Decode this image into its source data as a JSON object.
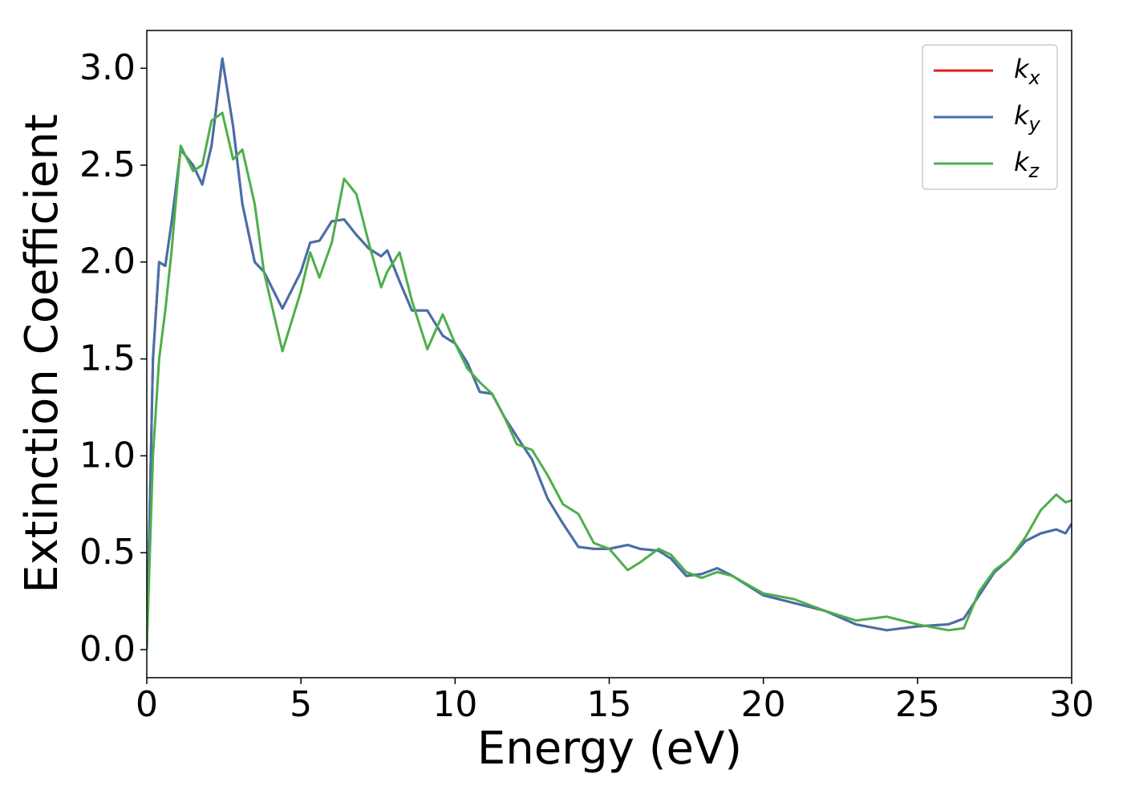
{
  "chart_data": {
    "type": "line",
    "xlabel": "Energy (eV)",
    "ylabel": "Extinction Coefficient",
    "x": [
      0,
      0.2,
      0.4,
      0.6,
      0.8,
      1.1,
      1.5,
      1.8,
      2.1,
      2.45,
      2.8,
      3.1,
      3.5,
      3.8,
      4.4,
      5.0,
      5.3,
      5.6,
      6.0,
      6.4,
      6.8,
      7.2,
      7.6,
      7.8,
      8.2,
      8.6,
      9.1,
      9.6,
      10.0,
      10.4,
      10.8,
      11.2,
      11.6,
      12,
      12.5,
      13,
      13.5,
      14,
      14.5,
      15,
      15.6,
      16,
      16.6,
      17,
      17.5,
      18,
      18.5,
      19,
      20,
      21,
      22,
      23,
      24,
      25,
      26,
      26.5,
      27,
      27.5,
      28,
      28.5,
      29,
      29.5,
      29.8,
      30
    ],
    "series": [
      {
        "name": "kx",
        "color": "#e41a1c",
        "values": [
          0.0,
          1.5,
          2.0,
          1.98,
          2.2,
          2.58,
          2.5,
          2.4,
          2.6,
          3.05,
          2.7,
          2.3,
          2.0,
          1.95,
          1.76,
          1.95,
          2.1,
          2.11,
          2.21,
          2.22,
          2.14,
          2.07,
          2.03,
          2.06,
          1.9,
          1.75,
          1.75,
          1.62,
          1.58,
          1.48,
          1.33,
          1.32,
          1.2,
          1.1,
          0.98,
          0.78,
          0.65,
          0.53,
          0.52,
          0.52,
          0.54,
          0.52,
          0.51,
          0.47,
          0.38,
          0.39,
          0.42,
          0.38,
          0.28,
          0.24,
          0.2,
          0.13,
          0.1,
          0.12,
          0.13,
          0.16,
          0.28,
          0.4,
          0.47,
          0.56,
          0.6,
          0.62,
          0.6,
          0.65
        ]
      },
      {
        "name": "ky",
        "color": "#4470ad",
        "values": [
          0.0,
          1.5,
          2.0,
          1.98,
          2.2,
          2.58,
          2.5,
          2.4,
          2.6,
          3.05,
          2.7,
          2.3,
          2.0,
          1.95,
          1.76,
          1.95,
          2.1,
          2.11,
          2.21,
          2.22,
          2.14,
          2.07,
          2.03,
          2.06,
          1.9,
          1.75,
          1.75,
          1.62,
          1.58,
          1.48,
          1.33,
          1.32,
          1.2,
          1.1,
          0.98,
          0.78,
          0.65,
          0.53,
          0.52,
          0.52,
          0.54,
          0.52,
          0.51,
          0.47,
          0.38,
          0.39,
          0.42,
          0.38,
          0.28,
          0.24,
          0.2,
          0.13,
          0.1,
          0.12,
          0.13,
          0.16,
          0.28,
          0.4,
          0.47,
          0.56,
          0.6,
          0.62,
          0.6,
          0.65
        ]
      },
      {
        "name": "kz",
        "color": "#4daf4a",
        "values": [
          0.0,
          1.0,
          1.5,
          1.75,
          2.05,
          2.6,
          2.47,
          2.5,
          2.73,
          2.77,
          2.53,
          2.58,
          2.3,
          1.95,
          1.54,
          1.85,
          2.05,
          1.92,
          2.1,
          2.43,
          2.35,
          2.1,
          1.87,
          1.95,
          2.05,
          1.8,
          1.55,
          1.73,
          1.58,
          1.45,
          1.38,
          1.32,
          1.2,
          1.06,
          1.03,
          0.9,
          0.75,
          0.7,
          0.55,
          0.52,
          0.41,
          0.45,
          0.52,
          0.49,
          0.4,
          0.37,
          0.4,
          0.38,
          0.29,
          0.26,
          0.2,
          0.15,
          0.17,
          0.13,
          0.1,
          0.11,
          0.3,
          0.41,
          0.47,
          0.58,
          0.72,
          0.8,
          0.76,
          0.77
        ]
      }
    ],
    "xlim": [
      0,
      30
    ],
    "ylim": [
      -0.145,
      3.195
    ],
    "xticks": [
      0,
      5,
      10,
      15,
      20,
      25,
      30
    ],
    "yticks": [
      {
        "value": 0,
        "label": "0.0"
      },
      0.5,
      {
        "value": 1,
        "label": "1.0"
      },
      1.5,
      {
        "value": 2,
        "label": "2.0"
      },
      2.5,
      {
        "value": 3,
        "label": "3.0"
      }
    ],
    "legend": "upper right"
  }
}
